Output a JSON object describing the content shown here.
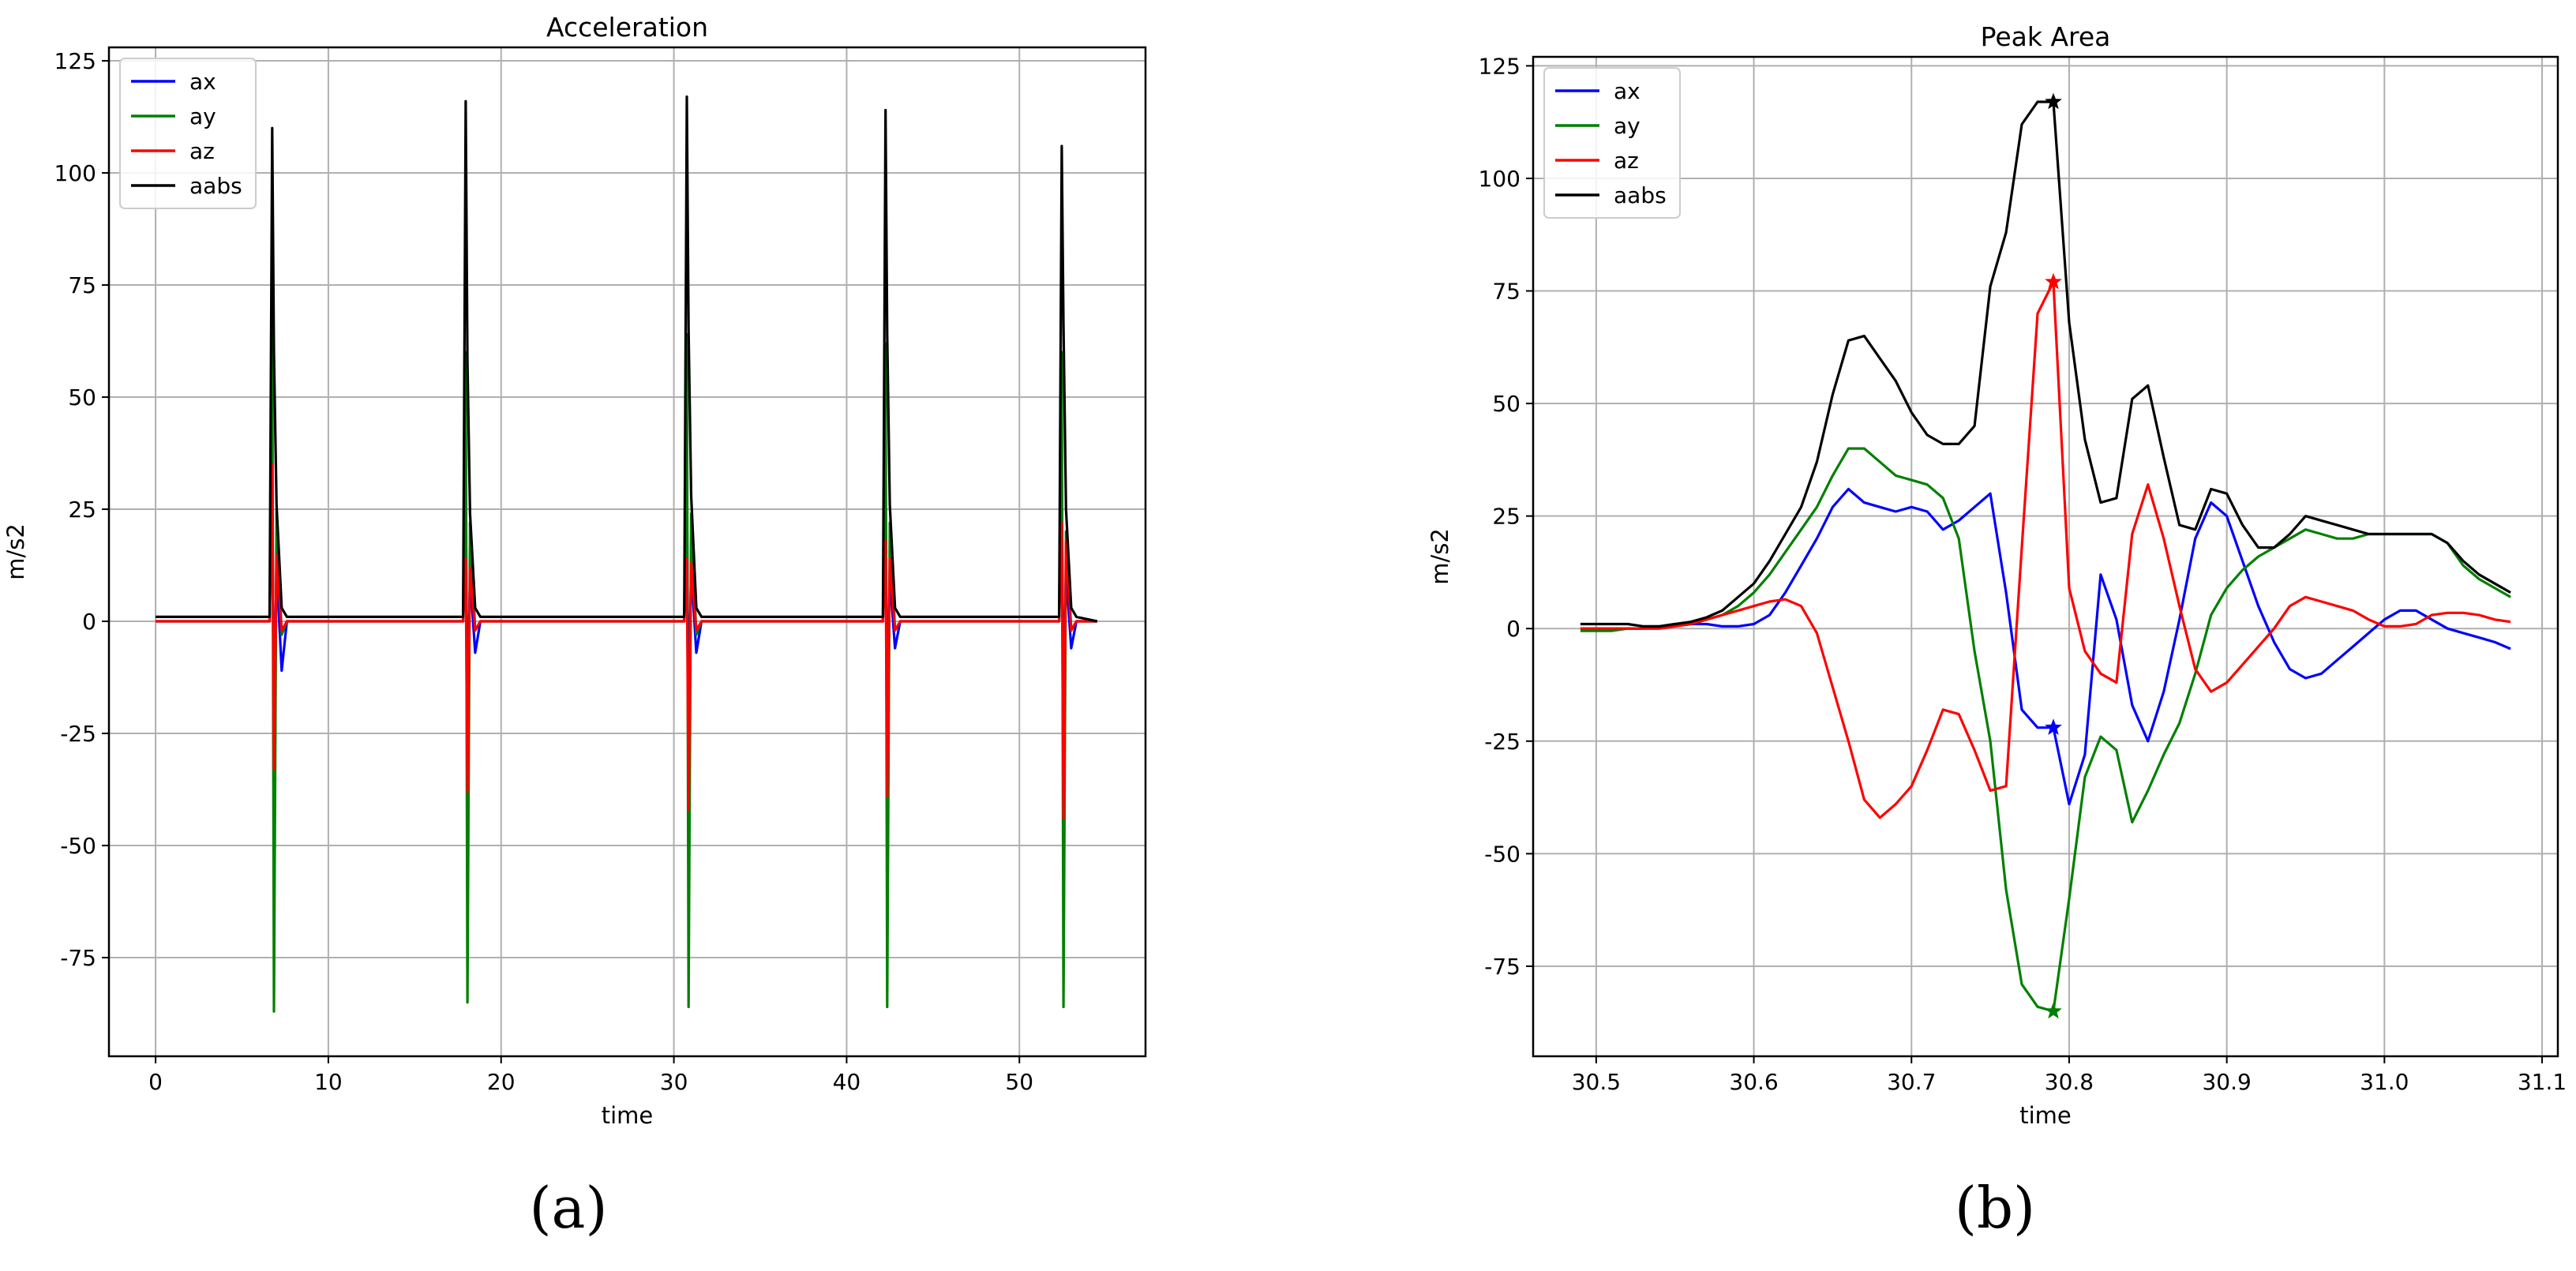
{
  "figure_labels": {
    "a": "(a)",
    "b": "(b)"
  },
  "chart_data": [
    {
      "type": "line",
      "title": "Acceleration",
      "xlabel": "time",
      "ylabel": "m/s2",
      "xlim": [
        -2.7,
        57.3
      ],
      "ylim": [
        -97,
        128
      ],
      "xticks": [
        0,
        10,
        20,
        30,
        40,
        50
      ],
      "yticks": [
        -75,
        -50,
        -25,
        0,
        25,
        50,
        75,
        100,
        125
      ],
      "grid": true,
      "legend": "upper-left",
      "colors": {
        "ax": "#0000ff",
        "ay": "#008000",
        "az": "#ff0000",
        "aabs": "#000000"
      },
      "peaks": [
        6.8,
        18.0,
        30.8,
        42.3,
        52.5
      ],
      "series": [
        {
          "name": "ax",
          "x": [
            0,
            6.6,
            6.75,
            6.85,
            7.0,
            7.3,
            7.6,
            17.8,
            17.95,
            18.05,
            18.2,
            18.5,
            18.8,
            30.6,
            30.75,
            30.85,
            31.0,
            31.3,
            31.6,
            42.1,
            42.25,
            42.35,
            42.5,
            42.8,
            43.1,
            52.3,
            52.45,
            52.55,
            52.7,
            53.0,
            53.3,
            54.5
          ],
          "y": [
            0,
            0,
            31,
            -22,
            12,
            -11,
            0,
            0,
            28,
            -20,
            10,
            -7,
            0,
            0,
            30,
            -22,
            12,
            -7,
            0,
            0,
            29,
            -20,
            10,
            -6,
            0,
            0,
            28,
            -19,
            11,
            -6,
            0,
            0
          ]
        },
        {
          "name": "ay",
          "x": [
            0,
            6.6,
            6.75,
            6.85,
            7.0,
            7.3,
            7.6,
            17.8,
            17.95,
            18.05,
            18.2,
            18.5,
            18.8,
            30.6,
            30.75,
            30.85,
            31.0,
            31.3,
            31.6,
            42.1,
            42.25,
            42.35,
            42.5,
            42.8,
            43.1,
            52.3,
            52.45,
            52.55,
            52.7,
            53.0,
            53.3,
            54.5
          ],
          "y": [
            0,
            0,
            70,
            -87,
            25,
            -3,
            0,
            0,
            60,
            -85,
            22,
            -2,
            0,
            0,
            64,
            -86,
            24,
            -3,
            0,
            0,
            62,
            -86,
            22,
            -2,
            0,
            0,
            60,
            -86,
            20,
            -2,
            0,
            0
          ]
        },
        {
          "name": "az",
          "x": [
            0,
            6.6,
            6.75,
            6.85,
            7.0,
            7.3,
            7.6,
            17.8,
            17.95,
            18.05,
            18.2,
            18.5,
            18.8,
            30.6,
            30.75,
            30.85,
            31.0,
            31.3,
            31.6,
            42.1,
            42.25,
            42.35,
            42.5,
            42.8,
            43.1,
            52.3,
            52.45,
            52.55,
            52.7,
            53.0,
            53.3,
            54.5
          ],
          "y": [
            0,
            0,
            35,
            -33,
            15,
            -2,
            0,
            0,
            14,
            -38,
            12,
            -2,
            0,
            0,
            14,
            -42,
            13,
            -2,
            0,
            0,
            18,
            -39,
            14,
            -2,
            0,
            0,
            22,
            -44,
            18,
            -2,
            0,
            0
          ]
        },
        {
          "name": "aabs",
          "x": [
            0,
            6.6,
            6.75,
            6.85,
            7.0,
            7.3,
            7.6,
            17.8,
            17.95,
            18.05,
            18.2,
            18.5,
            18.8,
            30.6,
            30.75,
            30.85,
            31.0,
            31.3,
            31.6,
            42.1,
            42.25,
            42.35,
            42.5,
            42.8,
            43.1,
            52.3,
            52.45,
            52.55,
            52.7,
            53.0,
            53.3,
            54.5
          ],
          "y": [
            1,
            1,
            110,
            60,
            26,
            3,
            1,
            1,
            116,
            58,
            24,
            3,
            1,
            1,
            117,
            65,
            28,
            3,
            1,
            1,
            114,
            64,
            26,
            3,
            1,
            1,
            106,
            66,
            25,
            3,
            1,
            0
          ]
        }
      ]
    },
    {
      "type": "line",
      "title": "Peak Area",
      "xlabel": "time",
      "ylabel": "m/s2",
      "xlim": [
        30.46,
        31.11
      ],
      "ylim": [
        -95,
        127
      ],
      "xticks": [
        30.5,
        30.6,
        30.7,
        30.8,
        30.9,
        31.0,
        31.1
      ],
      "xtick_labels": [
        "30.5",
        "30.6",
        "30.7",
        "30.8",
        "30.9",
        "31.0",
        "31.1"
      ],
      "yticks": [
        -75,
        -50,
        -25,
        0,
        25,
        50,
        75,
        100,
        125
      ],
      "grid": true,
      "legend": "upper-left",
      "colors": {
        "ax": "#0000ff",
        "ay": "#008000",
        "az": "#ff0000",
        "aabs": "#000000"
      },
      "x": [
        30.49,
        30.5,
        30.51,
        30.52,
        30.53,
        30.54,
        30.55,
        30.56,
        30.57,
        30.58,
        30.59,
        30.6,
        30.61,
        30.62,
        30.63,
        30.64,
        30.65,
        30.66,
        30.67,
        30.68,
        30.69,
        30.7,
        30.71,
        30.72,
        30.73,
        30.74,
        30.75,
        30.76,
        30.77,
        30.78,
        30.79,
        30.8,
        30.81,
        30.82,
        30.83,
        30.84,
        30.85,
        30.86,
        30.87,
        30.88,
        30.89,
        30.9,
        30.91,
        30.92,
        30.93,
        30.94,
        30.95,
        30.96,
        30.97,
        30.98,
        30.99,
        31.0,
        31.01,
        31.02,
        31.03,
        31.04,
        31.05,
        31.06,
        31.07,
        31.08
      ],
      "series": [
        {
          "name": "ax",
          "y": [
            0,
            0,
            0,
            0,
            0,
            0.5,
            1,
            1,
            1,
            0.5,
            0.5,
            1,
            3,
            8,
            14,
            20,
            27,
            31,
            28,
            27,
            26,
            27,
            26,
            22,
            24,
            27,
            30,
            8,
            -18,
            -22,
            -22,
            -39,
            -28,
            12,
            2,
            -17,
            -25,
            -14,
            2,
            20,
            28,
            25,
            15,
            5,
            -3,
            -9,
            -11,
            -10,
            -7,
            -4,
            -1,
            2,
            4,
            4,
            2,
            0,
            -1,
            -2,
            -3,
            -4.5
          ]
        },
        {
          "name": "ay",
          "y": [
            -0.5,
            -0.5,
            -0.5,
            0,
            0,
            0,
            0.5,
            1,
            2,
            3,
            5,
            8,
            12,
            17,
            22,
            27,
            34,
            40,
            40,
            37,
            34,
            33,
            32,
            29,
            20,
            -5,
            -25,
            -58,
            -79,
            -84,
            -85,
            -60,
            -33,
            -24,
            -27,
            -43,
            -36,
            -28,
            -21,
            -10,
            3,
            9,
            13,
            16,
            18,
            20,
            22,
            21,
            20,
            20,
            21,
            21,
            21,
            21,
            21,
            19,
            14,
            11,
            9,
            7
          ]
        },
        {
          "name": "az",
          "y": [
            0,
            0,
            0,
            0,
            0,
            0,
            0.5,
            1,
            2,
            3,
            4,
            5,
            6,
            6.5,
            5,
            -1,
            -13,
            -25,
            -38,
            -42,
            -39,
            -35,
            -27,
            -18,
            -19,
            -27,
            -36,
            -35,
            18,
            70,
            77,
            9,
            -5,
            -10,
            -12,
            21,
            32,
            20,
            5,
            -9,
            -14,
            -12,
            -8,
            -4,
            0,
            5,
            7,
            6,
            5,
            4,
            2,
            0.5,
            0.5,
            1,
            3,
            3.5,
            3.5,
            3,
            2,
            1.5
          ]
        },
        {
          "name": "aabs",
          "y": [
            1,
            1,
            1,
            1,
            0.5,
            0.5,
            1,
            1.5,
            2.5,
            4,
            7,
            10,
            15,
            21,
            27,
            37,
            52,
            64,
            65,
            60,
            55,
            48,
            43,
            41,
            41,
            45,
            76,
            88,
            112,
            117,
            117,
            68,
            42,
            28,
            29,
            51,
            54,
            38,
            23,
            22,
            31,
            30,
            23,
            18,
            18,
            21,
            25,
            24,
            23,
            22,
            21,
            21,
            21,
            21,
            21,
            19,
            15,
            12,
            10,
            8
          ]
        }
      ],
      "markers": [
        {
          "series": "ax",
          "x": 30.79,
          "y": -22
        },
        {
          "series": "ay",
          "x": 30.79,
          "y": -85
        },
        {
          "series": "az",
          "x": 30.79,
          "y": 77
        },
        {
          "series": "aabs",
          "x": 30.79,
          "y": 117
        }
      ]
    }
  ]
}
